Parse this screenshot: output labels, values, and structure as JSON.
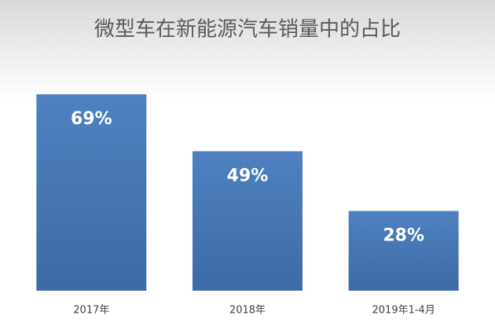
{
  "chart_data": {
    "type": "bar",
    "title": "微型车在新能源汽车销量中的占比",
    "categories": [
      "2017年",
      "2018年",
      "2019年1-4月"
    ],
    "values": [
      69,
      49,
      28
    ],
    "value_labels": [
      "69%",
      "49%",
      "28%"
    ],
    "color": "#4a7ebb"
  }
}
